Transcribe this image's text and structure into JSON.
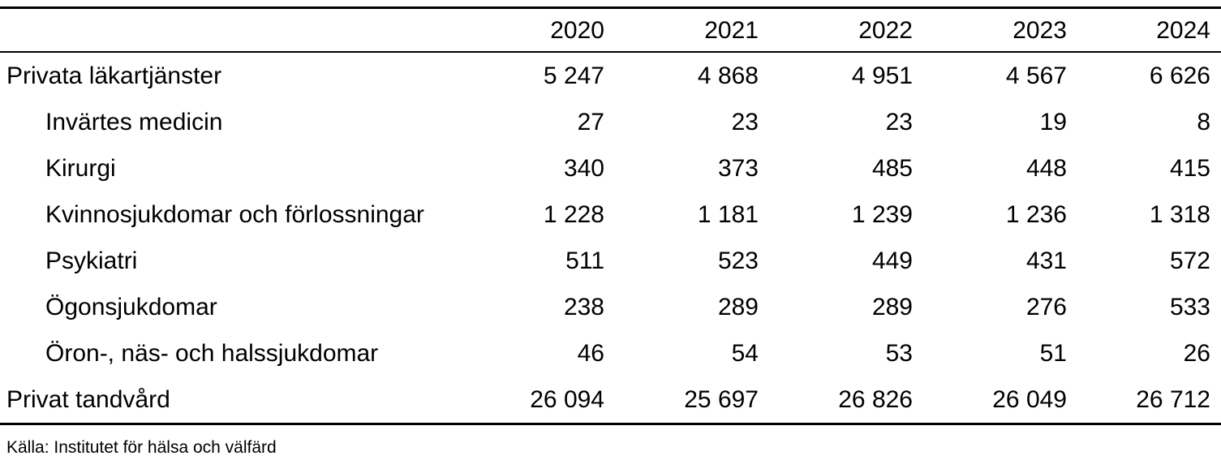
{
  "table": {
    "columns": [
      "2020",
      "2021",
      "2022",
      "2023",
      "2024"
    ],
    "rows": [
      {
        "label": "Privata läkartjänster",
        "indent": false,
        "values": [
          "5 247",
          "4 868",
          "4 951",
          "4 567",
          "6 626"
        ]
      },
      {
        "label": "Invärtes medicin",
        "indent": true,
        "values": [
          "27",
          "23",
          "23",
          "19",
          "8"
        ]
      },
      {
        "label": "Kirurgi",
        "indent": true,
        "values": [
          "340",
          "373",
          "485",
          "448",
          "415"
        ]
      },
      {
        "label": "Kvinnosjukdomar och förlossningar",
        "indent": true,
        "values": [
          "1 228",
          "1 181",
          "1 239",
          "1 236",
          "1 318"
        ]
      },
      {
        "label": "Psykiatri",
        "indent": true,
        "values": [
          "511",
          "523",
          "449",
          "431",
          "572"
        ]
      },
      {
        "label": "Ögonsjukdomar",
        "indent": true,
        "values": [
          "238",
          "289",
          "289",
          "276",
          "533"
        ]
      },
      {
        "label": "Öron-, näs- och halssjukdomar",
        "indent": true,
        "values": [
          "46",
          "54",
          "53",
          "51",
          "26"
        ]
      },
      {
        "label": "Privat tandvård",
        "indent": false,
        "values": [
          "26 094",
          "25 697",
          "26 826",
          "26 049",
          "26 712"
        ]
      }
    ],
    "source": "Källa: Institutet för hälsa och välfärd"
  },
  "chart_data": {
    "type": "table",
    "title": "",
    "categories": [
      "2020",
      "2021",
      "2022",
      "2023",
      "2024"
    ],
    "series": [
      {
        "name": "Privata läkartjänster",
        "values": [
          5247,
          4868,
          4951,
          4567,
          6626
        ]
      },
      {
        "name": "Invärtes medicin",
        "values": [
          27,
          23,
          23,
          19,
          8
        ]
      },
      {
        "name": "Kirurgi",
        "values": [
          340,
          373,
          485,
          448,
          415
        ]
      },
      {
        "name": "Kvinnosjukdomar och förlossningar",
        "values": [
          1228,
          1181,
          1239,
          1236,
          1318
        ]
      },
      {
        "name": "Psykiatri",
        "values": [
          511,
          523,
          449,
          431,
          572
        ]
      },
      {
        "name": "Ögonsjukdomar",
        "values": [
          238,
          289,
          289,
          276,
          533
        ]
      },
      {
        "name": "Öron-, näs- och halssjukdomar",
        "values": [
          46,
          54,
          53,
          51,
          26
        ]
      },
      {
        "name": "Privat tandvård",
        "values": [
          26094,
          25697,
          26826,
          26049,
          26712
        ]
      }
    ],
    "source": "Källa: Institutet för hälsa och välfärd"
  }
}
